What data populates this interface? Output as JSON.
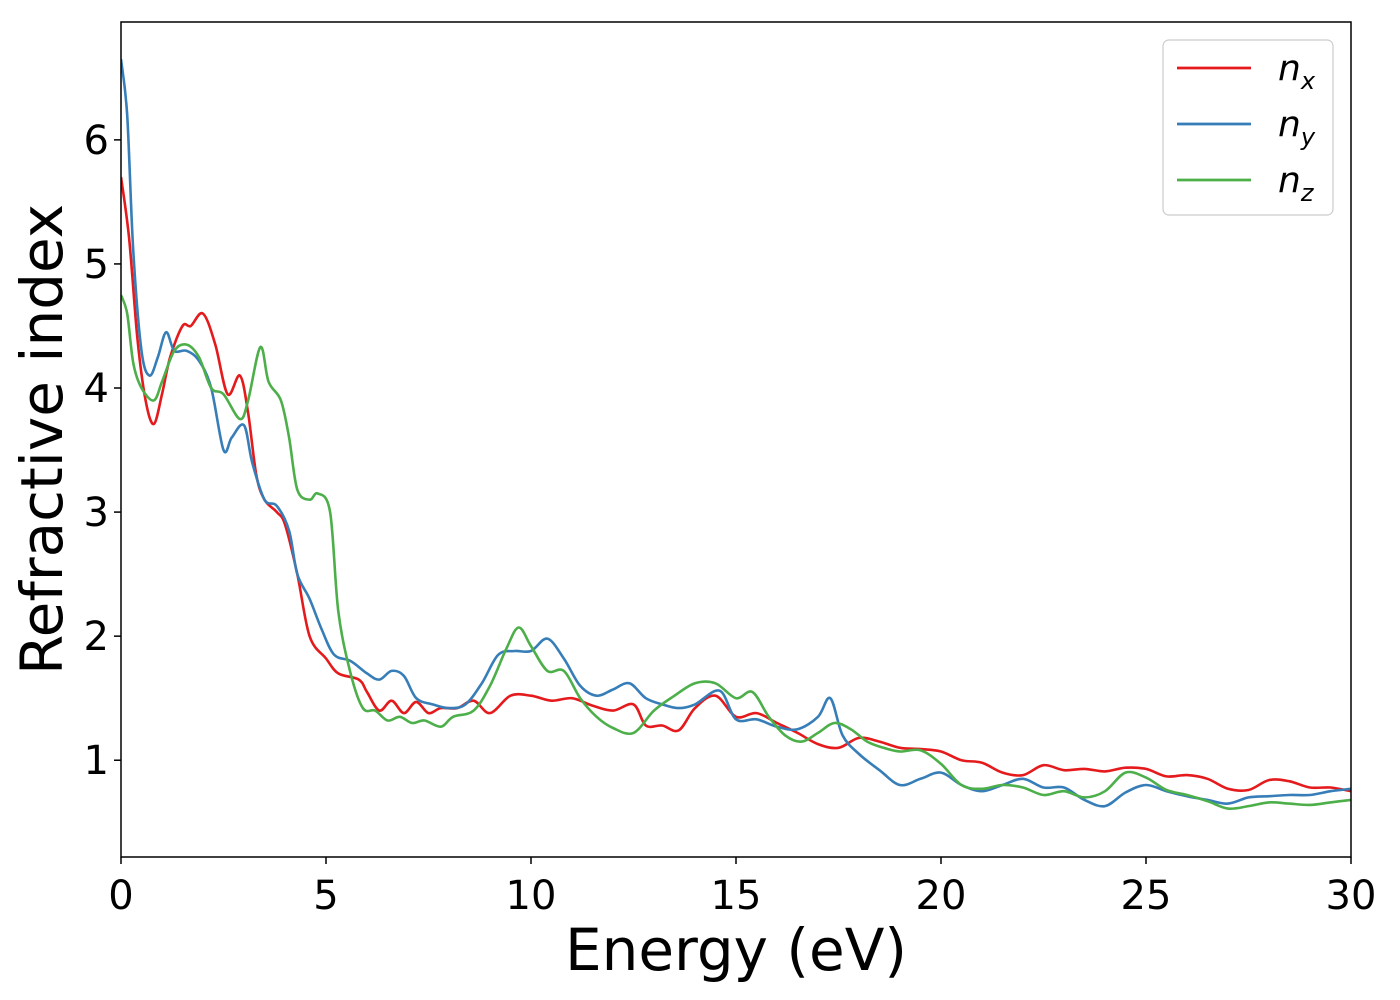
{
  "chart_data": {
    "type": "line",
    "xlabel": "Energy (eV)",
    "ylabel": "Refractive index",
    "xlim": [
      0,
      30
    ],
    "ylim": [
      0.22,
      6.95
    ],
    "xticks": [
      0,
      5,
      10,
      15,
      20,
      25,
      30
    ],
    "yticks": [
      1,
      2,
      3,
      4,
      5,
      6
    ],
    "grid": false,
    "legend_position": "top-right",
    "series": [
      {
        "name": "n",
        "subscript": "x",
        "color": "#e41a1c",
        "points": [
          [
            0,
            5.7
          ],
          [
            0.2,
            5.2
          ],
          [
            0.4,
            4.4
          ],
          [
            0.6,
            3.9
          ],
          [
            0.8,
            3.71
          ],
          [
            1.0,
            3.95
          ],
          [
            1.2,
            4.25
          ],
          [
            1.5,
            4.5
          ],
          [
            1.7,
            4.5
          ],
          [
            2.0,
            4.6
          ],
          [
            2.3,
            4.35
          ],
          [
            2.6,
            3.95
          ],
          [
            2.9,
            4.1
          ],
          [
            3.1,
            3.8
          ],
          [
            3.3,
            3.3
          ],
          [
            3.5,
            3.1
          ],
          [
            3.8,
            3.0
          ],
          [
            4.0,
            2.9
          ],
          [
            4.3,
            2.5
          ],
          [
            4.6,
            2.0
          ],
          [
            5.0,
            1.82
          ],
          [
            5.3,
            1.7
          ],
          [
            5.8,
            1.65
          ],
          [
            6.0,
            1.55
          ],
          [
            6.3,
            1.4
          ],
          [
            6.6,
            1.48
          ],
          [
            6.9,
            1.38
          ],
          [
            7.2,
            1.47
          ],
          [
            7.5,
            1.38
          ],
          [
            7.8,
            1.42
          ],
          [
            8.2,
            1.42
          ],
          [
            8.6,
            1.48
          ],
          [
            9.0,
            1.38
          ],
          [
            9.5,
            1.52
          ],
          [
            10.0,
            1.52
          ],
          [
            10.5,
            1.48
          ],
          [
            11.0,
            1.5
          ],
          [
            11.5,
            1.44
          ],
          [
            12.0,
            1.4
          ],
          [
            12.5,
            1.45
          ],
          [
            12.8,
            1.28
          ],
          [
            13.2,
            1.28
          ],
          [
            13.6,
            1.24
          ],
          [
            14.0,
            1.42
          ],
          [
            14.5,
            1.52
          ],
          [
            15.0,
            1.35
          ],
          [
            15.5,
            1.38
          ],
          [
            16.0,
            1.3
          ],
          [
            16.5,
            1.22
          ],
          [
            17.0,
            1.13
          ],
          [
            17.5,
            1.1
          ],
          [
            18.0,
            1.18
          ],
          [
            18.5,
            1.15
          ],
          [
            19.0,
            1.1
          ],
          [
            19.5,
            1.09
          ],
          [
            20.0,
            1.07
          ],
          [
            20.5,
            1.0
          ],
          [
            21.0,
            0.98
          ],
          [
            21.5,
            0.9
          ],
          [
            22.0,
            0.88
          ],
          [
            22.5,
            0.96
          ],
          [
            23.0,
            0.92
          ],
          [
            23.5,
            0.93
          ],
          [
            24.0,
            0.91
          ],
          [
            24.5,
            0.94
          ],
          [
            25.0,
            0.93
          ],
          [
            25.5,
            0.87
          ],
          [
            26.0,
            0.88
          ],
          [
            26.5,
            0.85
          ],
          [
            27.0,
            0.77
          ],
          [
            27.5,
            0.76
          ],
          [
            28.0,
            0.84
          ],
          [
            28.5,
            0.83
          ],
          [
            29.0,
            0.78
          ],
          [
            29.5,
            0.78
          ],
          [
            30.0,
            0.75
          ]
        ]
      },
      {
        "name": "n",
        "subscript": "y",
        "color": "#377eb8",
        "points": [
          [
            0,
            6.65
          ],
          [
            0.15,
            6.2
          ],
          [
            0.3,
            5.1
          ],
          [
            0.5,
            4.3
          ],
          [
            0.7,
            4.1
          ],
          [
            0.9,
            4.25
          ],
          [
            1.1,
            4.45
          ],
          [
            1.3,
            4.3
          ],
          [
            1.6,
            4.3
          ],
          [
            1.9,
            4.22
          ],
          [
            2.2,
            4.0
          ],
          [
            2.5,
            3.5
          ],
          [
            2.7,
            3.6
          ],
          [
            3.0,
            3.7
          ],
          [
            3.2,
            3.4
          ],
          [
            3.5,
            3.1
          ],
          [
            3.8,
            3.05
          ],
          [
            4.1,
            2.85
          ],
          [
            4.3,
            2.5
          ],
          [
            4.6,
            2.3
          ],
          [
            4.9,
            2.05
          ],
          [
            5.2,
            1.85
          ],
          [
            5.6,
            1.8
          ],
          [
            6.0,
            1.7
          ],
          [
            6.3,
            1.65
          ],
          [
            6.6,
            1.72
          ],
          [
            6.9,
            1.68
          ],
          [
            7.2,
            1.5
          ],
          [
            7.6,
            1.45
          ],
          [
            8.0,
            1.42
          ],
          [
            8.4,
            1.45
          ],
          [
            8.8,
            1.62
          ],
          [
            9.2,
            1.85
          ],
          [
            9.6,
            1.88
          ],
          [
            10.0,
            1.88
          ],
          [
            10.4,
            1.98
          ],
          [
            10.8,
            1.82
          ],
          [
            11.2,
            1.6
          ],
          [
            11.6,
            1.52
          ],
          [
            12.0,
            1.57
          ],
          [
            12.4,
            1.62
          ],
          [
            12.8,
            1.5
          ],
          [
            13.2,
            1.45
          ],
          [
            13.6,
            1.42
          ],
          [
            14.0,
            1.45
          ],
          [
            14.6,
            1.56
          ],
          [
            15.0,
            1.33
          ],
          [
            15.5,
            1.33
          ],
          [
            16.0,
            1.27
          ],
          [
            16.5,
            1.25
          ],
          [
            17.0,
            1.35
          ],
          [
            17.3,
            1.5
          ],
          [
            17.6,
            1.2
          ],
          [
            18.0,
            1.05
          ],
          [
            18.5,
            0.92
          ],
          [
            19.0,
            0.8
          ],
          [
            19.5,
            0.85
          ],
          [
            20.0,
            0.9
          ],
          [
            20.5,
            0.8
          ],
          [
            21.0,
            0.75
          ],
          [
            21.5,
            0.8
          ],
          [
            22.0,
            0.85
          ],
          [
            22.5,
            0.78
          ],
          [
            23.0,
            0.78
          ],
          [
            23.5,
            0.68
          ],
          [
            24.0,
            0.63
          ],
          [
            24.5,
            0.74
          ],
          [
            25.0,
            0.8
          ],
          [
            25.5,
            0.75
          ],
          [
            26.0,
            0.71
          ],
          [
            26.5,
            0.68
          ],
          [
            27.0,
            0.65
          ],
          [
            27.5,
            0.7
          ],
          [
            28.0,
            0.71
          ],
          [
            28.5,
            0.72
          ],
          [
            29.0,
            0.72
          ],
          [
            29.5,
            0.75
          ],
          [
            30.0,
            0.77
          ]
        ]
      },
      {
        "name": "n",
        "subscript": "z",
        "color": "#4daf4a",
        "points": [
          [
            0,
            4.75
          ],
          [
            0.15,
            4.6
          ],
          [
            0.3,
            4.2
          ],
          [
            0.5,
            4.0
          ],
          [
            0.8,
            3.9
          ],
          [
            1.0,
            4.05
          ],
          [
            1.3,
            4.3
          ],
          [
            1.6,
            4.35
          ],
          [
            1.9,
            4.25
          ],
          [
            2.2,
            4.0
          ],
          [
            2.5,
            3.95
          ],
          [
            2.9,
            3.75
          ],
          [
            3.1,
            3.9
          ],
          [
            3.4,
            4.33
          ],
          [
            3.6,
            4.05
          ],
          [
            3.9,
            3.9
          ],
          [
            4.1,
            3.6
          ],
          [
            4.3,
            3.18
          ],
          [
            4.6,
            3.1
          ],
          [
            4.8,
            3.15
          ],
          [
            5.1,
            3.0
          ],
          [
            5.3,
            2.2
          ],
          [
            5.6,
            1.7
          ],
          [
            5.9,
            1.42
          ],
          [
            6.2,
            1.4
          ],
          [
            6.5,
            1.32
          ],
          [
            6.8,
            1.35
          ],
          [
            7.1,
            1.3
          ],
          [
            7.4,
            1.32
          ],
          [
            7.8,
            1.27
          ],
          [
            8.1,
            1.35
          ],
          [
            8.6,
            1.4
          ],
          [
            9.0,
            1.6
          ],
          [
            9.4,
            1.9
          ],
          [
            9.7,
            2.07
          ],
          [
            10.0,
            1.92
          ],
          [
            10.4,
            1.72
          ],
          [
            10.8,
            1.72
          ],
          [
            11.2,
            1.5
          ],
          [
            11.6,
            1.35
          ],
          [
            12.0,
            1.26
          ],
          [
            12.5,
            1.22
          ],
          [
            13.0,
            1.4
          ],
          [
            13.5,
            1.52
          ],
          [
            14.0,
            1.62
          ],
          [
            14.5,
            1.62
          ],
          [
            15.0,
            1.5
          ],
          [
            15.4,
            1.55
          ],
          [
            15.8,
            1.35
          ],
          [
            16.2,
            1.2
          ],
          [
            16.6,
            1.15
          ],
          [
            17.0,
            1.22
          ],
          [
            17.4,
            1.3
          ],
          [
            17.8,
            1.25
          ],
          [
            18.2,
            1.15
          ],
          [
            18.6,
            1.1
          ],
          [
            19.0,
            1.07
          ],
          [
            19.5,
            1.08
          ],
          [
            20.0,
            0.97
          ],
          [
            20.5,
            0.8
          ],
          [
            21.0,
            0.77
          ],
          [
            21.5,
            0.8
          ],
          [
            22.0,
            0.78
          ],
          [
            22.5,
            0.72
          ],
          [
            23.0,
            0.75
          ],
          [
            23.5,
            0.7
          ],
          [
            24.0,
            0.75
          ],
          [
            24.5,
            0.9
          ],
          [
            25.0,
            0.86
          ],
          [
            25.5,
            0.76
          ],
          [
            26.0,
            0.72
          ],
          [
            26.5,
            0.67
          ],
          [
            27.0,
            0.61
          ],
          [
            27.5,
            0.63
          ],
          [
            28.0,
            0.66
          ],
          [
            28.5,
            0.65
          ],
          [
            29.0,
            0.64
          ],
          [
            29.5,
            0.66
          ],
          [
            30.0,
            0.68
          ]
        ]
      }
    ]
  }
}
